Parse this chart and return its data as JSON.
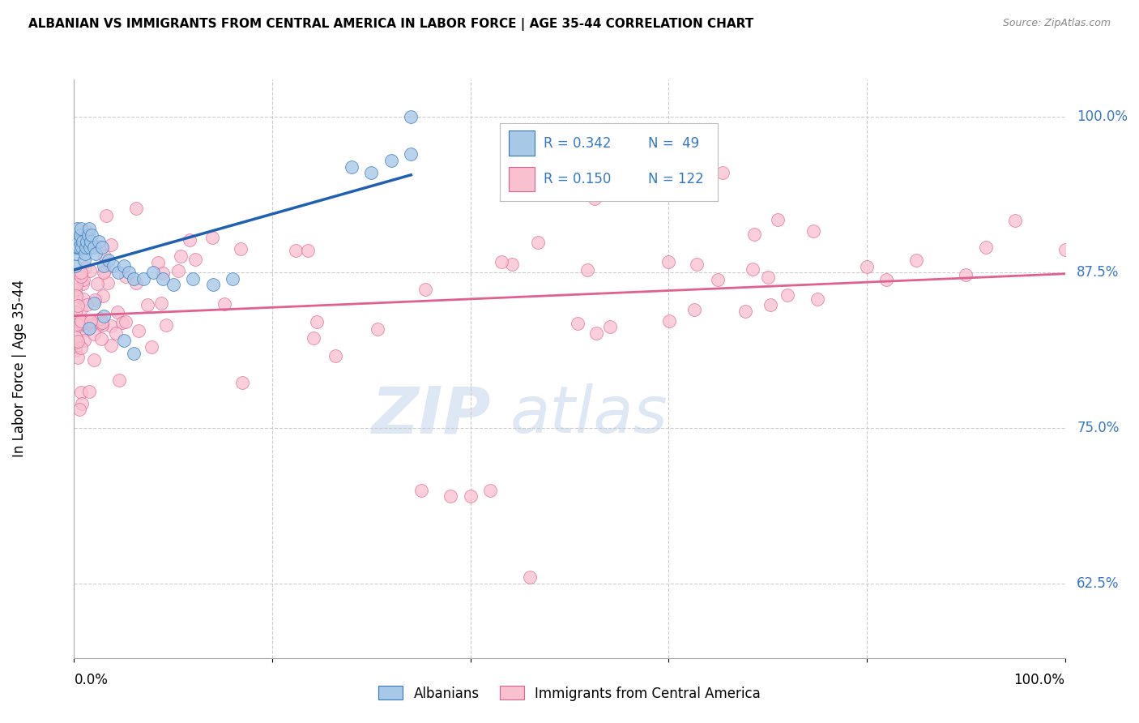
{
  "title": "ALBANIAN VS IMMIGRANTS FROM CENTRAL AMERICA IN LABOR FORCE | AGE 35-44 CORRELATION CHART",
  "source": "Source: ZipAtlas.com",
  "ylabel": "In Labor Force | Age 35-44",
  "xlim": [
    0.0,
    1.0
  ],
  "ylim": [
    0.565,
    1.03
  ],
  "ytick_labels": [
    "62.5%",
    "75.0%",
    "87.5%",
    "100.0%"
  ],
  "ytick_values": [
    0.625,
    0.75,
    0.875,
    1.0
  ],
  "color_blue": "#a8c8e8",
  "color_pink": "#f9c0d0",
  "edge_blue": "#3478b8",
  "edge_pink": "#e06090",
  "line_blue": "#2060b0",
  "line_pink": "#e06090",
  "legend_label1": "R = 0.342   N =  49",
  "legend_label2": "R = 0.150   N = 122"
}
